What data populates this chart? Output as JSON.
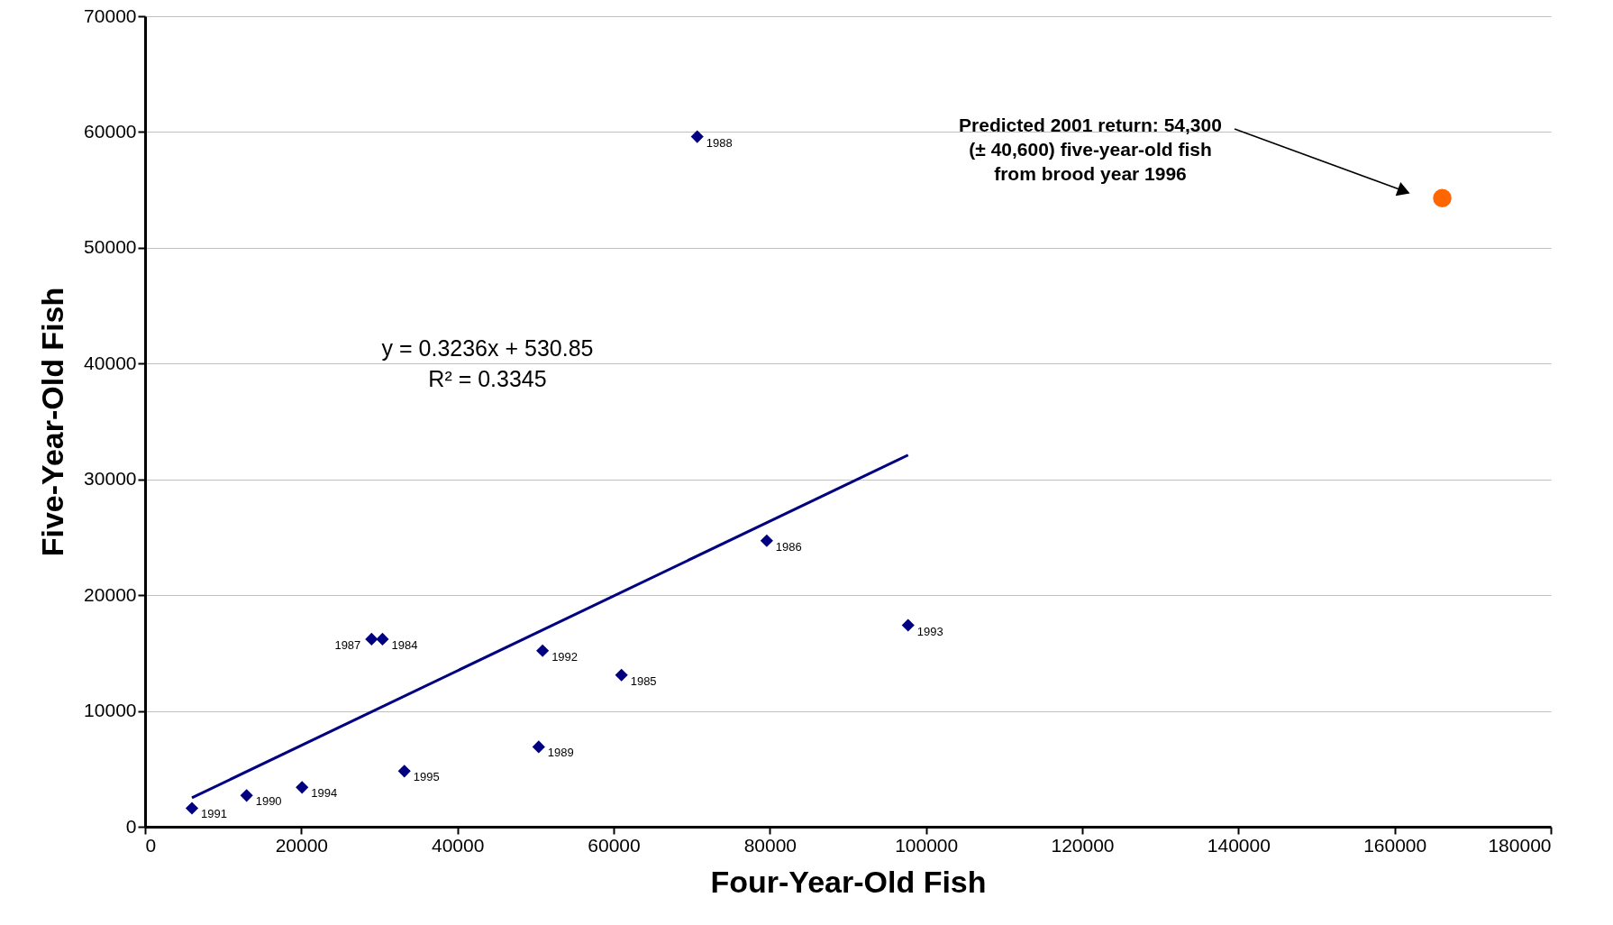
{
  "chart_data": {
    "type": "scatter",
    "xlabel": "Four-Year-Old Fish",
    "ylabel": "Five-Year-Old Fish",
    "xlim": [
      0,
      180000
    ],
    "xticks": [
      0,
      20000,
      40000,
      60000,
      80000,
      100000,
      120000,
      140000,
      160000,
      180000
    ],
    "ylim": [
      0,
      70000
    ],
    "yticks": [
      0,
      10000,
      20000,
      30000,
      40000,
      50000,
      60000,
      70000
    ],
    "grid": "y",
    "marker": "diamond",
    "series": [
      {
        "color": "#000080",
        "x": [
          30400,
          61000,
          79600,
          29000,
          70700,
          50400,
          13000,
          6000,
          50900,
          97700,
          20100,
          33200
        ],
        "values": [
          16200,
          13100,
          24700,
          16200,
          59600,
          6900,
          2700,
          1600,
          15200,
          17400,
          3400,
          4800
        ]
      },
      {
        "type": "line",
        "marker": "none",
        "color": "#000080",
        "x": [
          6000,
          97700
        ],
        "values": [
          2500,
          32100
        ]
      },
      {
        "marker": "circle",
        "color": "#ff6600",
        "x": [
          166100
        ],
        "values": [
          54300
        ]
      }
    ],
    "annotations": [
      {
        "text": "1984",
        "x": 30400,
        "y": 16200
      },
      {
        "text": "1985",
        "x": 61000,
        "y": 13100
      },
      {
        "text": "1986",
        "x": 79600,
        "y": 24700
      },
      {
        "text": "1987",
        "x": 29000,
        "y": 16200
      },
      {
        "text": "1988",
        "x": 70700,
        "y": 59600
      },
      {
        "text": "1989",
        "x": 50400,
        "y": 6900
      },
      {
        "text": "1990",
        "x": 13000,
        "y": 2700
      },
      {
        "text": "1991",
        "x": 6000,
        "y": 1600
      },
      {
        "text": "1992",
        "x": 50900,
        "y": 15200
      },
      {
        "text": "1993",
        "x": 97700,
        "y": 17400
      },
      {
        "text": "1994",
        "x": 20100,
        "y": 3400
      },
      {
        "text": "1995",
        "x": 33200,
        "y": 4800
      },
      {
        "text": "Predicted 2001 return: 54,300\n(± 40,600) five-year-old fish\nfrom brood year 1996"
      },
      "y = 0.3236x + 530.85",
      "R² = 0.3345"
    ]
  }
}
